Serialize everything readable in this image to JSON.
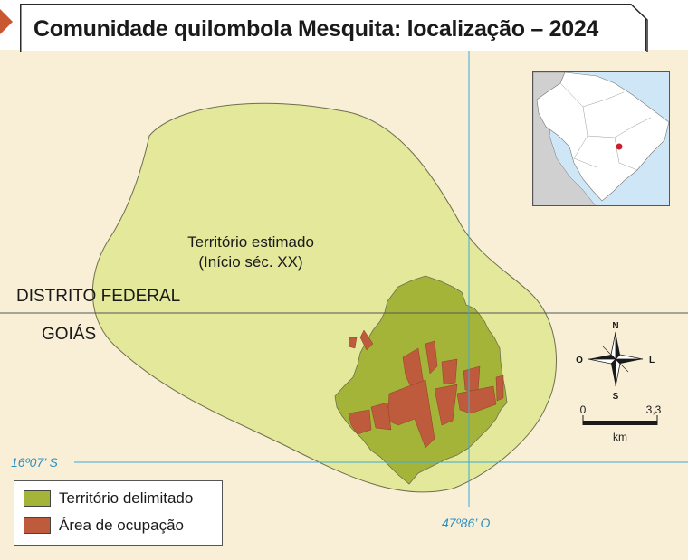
{
  "map": {
    "title": "Comunidade quilombola Mesquita: localização – 2024",
    "region_north": "DISTRITO FEDERAL",
    "region_south": "GOIÁS",
    "territory_label_line1": "Território estimado",
    "territory_label_line2": "(Início séc. XX)",
    "lat_label": "16º07’ S",
    "lon_label": "47º86’ O",
    "compass": {
      "n": "N",
      "s": "S",
      "e": "L",
      "w": "O"
    },
    "scale": {
      "start": "0",
      "end": "3,3",
      "unit": "km"
    },
    "legend": [
      {
        "label": "Território delimitado",
        "color": "#a4b438"
      },
      {
        "label": "Área de ocupação",
        "color": "#bf5b3d"
      }
    ],
    "colors": {
      "background": "#f8efd6",
      "estimated_territory": "#e4e89a",
      "delimited_territory": "#a4b438",
      "occupation": "#bf5b3d",
      "grid_line": "#3fa9d6",
      "border_line": "#555555",
      "accent": "#c9572f",
      "inset_water": "#cfe6f6",
      "inset_land": "#d0d0d0",
      "inset_brazil": "#ffffff",
      "locator_dot": "#cc1f2d"
    }
  }
}
